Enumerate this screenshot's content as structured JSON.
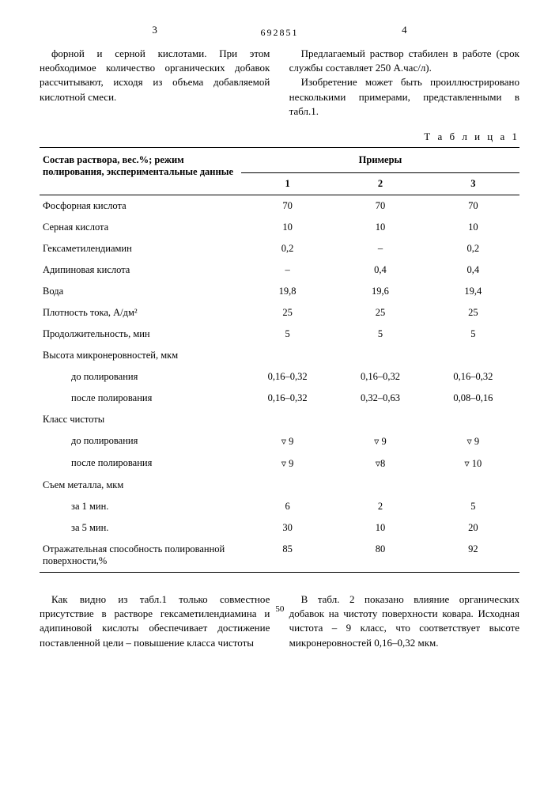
{
  "header": {
    "page_left": "3",
    "doc_number": "692851",
    "page_right": "4"
  },
  "top_left_text": "форной и серной кислотами. При этом необходимое количество органических добавок рассчитывают, исходя из объема добавляемой кислотной смеси.",
  "top_right_text_1": "Предлагаемый раствор стабилен в работе (срок службы составляет 250 А.час/л).",
  "top_right_text_2": "Изобретение может быть проиллюстрировано несколькими примерами, представленными в табл.1.",
  "table_label": "Т а б л и ц а 1",
  "table": {
    "header_left": "Состав раствора, вес.%; режим полирования, экспериментальные данные",
    "header_right": "Примеры",
    "sub_headers": [
      "1",
      "2",
      "3"
    ],
    "rows": [
      {
        "label": "Фосфорная кислота",
        "values": [
          "70",
          "70",
          "70"
        ]
      },
      {
        "label": "Серная кислота",
        "values": [
          "10",
          "10",
          "10"
        ]
      },
      {
        "label": "Гексаметилендиамин",
        "values": [
          "0,2",
          "–",
          "0,2"
        ]
      },
      {
        "label": "Адипиновая кислота",
        "values": [
          "–",
          "0,4",
          "0,4"
        ]
      },
      {
        "label": "Вода",
        "values": [
          "19,8",
          "19,6",
          "19,4"
        ]
      },
      {
        "label": "Плотность тока, А/дм²",
        "values": [
          "25",
          "25",
          "25"
        ]
      },
      {
        "label": "Продолжительность, мин",
        "values": [
          "5",
          "5",
          "5"
        ]
      },
      {
        "label": "Высота микронеровностей, мкм",
        "values": [
          "",
          "",
          ""
        ],
        "group": true
      },
      {
        "label": "до полирования",
        "values": [
          "0,16–0,32",
          "0,16–0,32",
          "0,16–0,32"
        ],
        "indent": true
      },
      {
        "label": "после полирования",
        "values": [
          "0,16–0,32",
          "0,32–0,63",
          "0,08–0,16"
        ],
        "indent": true
      },
      {
        "label": "Класс чистоты",
        "values": [
          "",
          "",
          ""
        ],
        "group": true
      },
      {
        "label": "до полирования",
        "values": [
          "▿ 9",
          "▿ 9",
          "▿ 9"
        ],
        "indent": true
      },
      {
        "label": "после полирования",
        "values": [
          "▿ 9",
          "▿8",
          "▿ 10"
        ],
        "indent": true
      },
      {
        "label": "Съем металла, мкм",
        "values": [
          "",
          "",
          ""
        ],
        "group": true
      },
      {
        "label": "за 1 мин.",
        "values": [
          "6",
          "2",
          "5"
        ],
        "indent": true
      },
      {
        "label": "за 5 мин.",
        "values": [
          "30",
          "10",
          "20"
        ],
        "indent": true
      },
      {
        "label": "Отражательная способность полированной поверхности,%",
        "values": [
          "85",
          "80",
          "92"
        ]
      }
    ]
  },
  "bottom_left_text": "Как видно из табл.1 только совместное присутствие в растворе гексаметилендиамина и адипиновой кислоты обеспечивает достижение поставленной цели – повышение класса чистоты",
  "bottom_right_text": "В табл. 2 показано влияние органических добавок на чистоту поверхности ковара. Исходная чистота – 9 класс, что соответствует высоте микронеровностей 0,16–0,32 мкм.",
  "line_number": "50"
}
